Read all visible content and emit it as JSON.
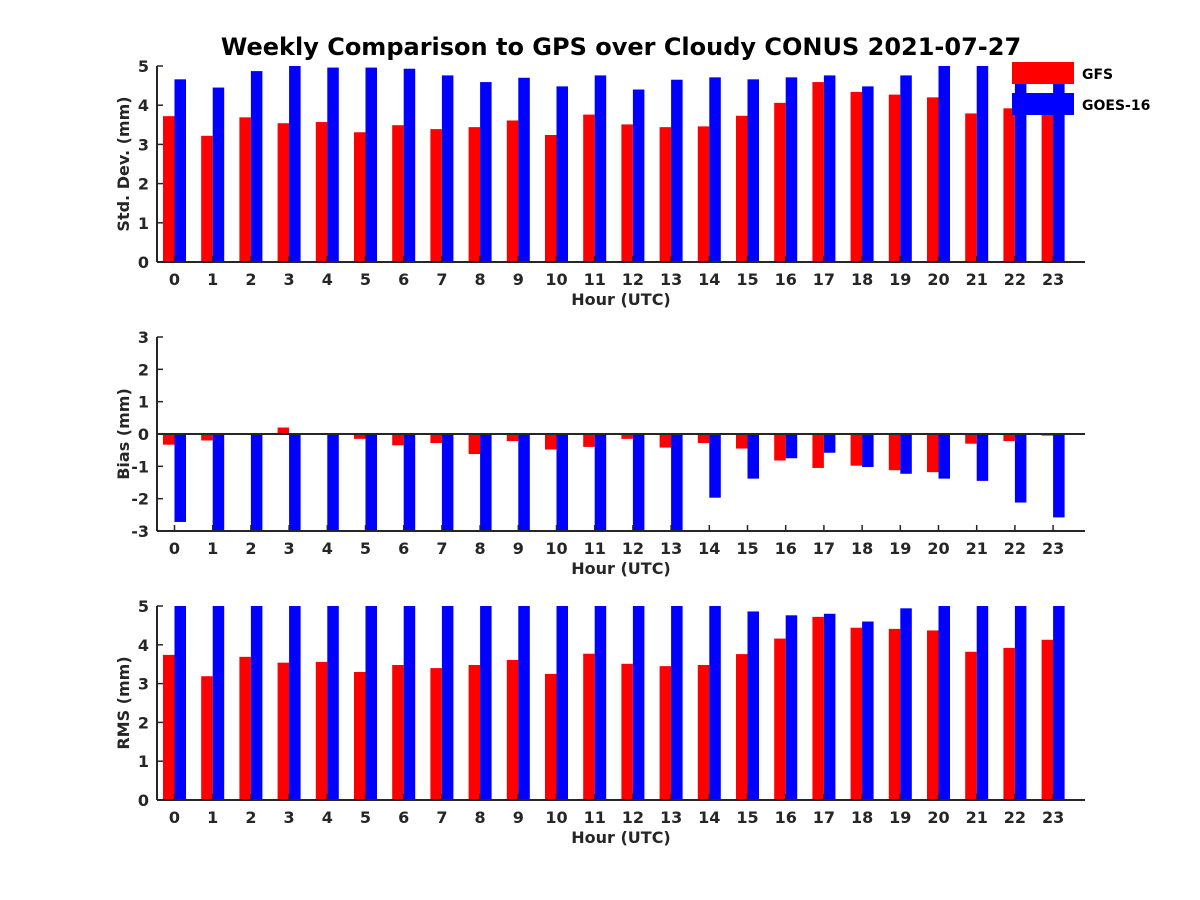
{
  "title": "Weekly Comparison to GPS over Cloudy CONUS 2021-07-27",
  "legend": {
    "placement": "top-right, outside axes",
    "entries": [
      {
        "name": "GFS",
        "color": "#ff0000"
      },
      {
        "name": "GOES-16",
        "color": "#0000ff"
      }
    ]
  },
  "chart_data": [
    {
      "type": "bar",
      "ylabel": "Std. Dev. (mm)",
      "xlabel": "Hour (UTC)",
      "ylim": [
        0,
        5
      ],
      "yticks": [
        0,
        1,
        2,
        3,
        4,
        5
      ],
      "grid": false,
      "categories": [
        "0",
        "1",
        "2",
        "3",
        "4",
        "5",
        "6",
        "7",
        "8",
        "9",
        "10",
        "11",
        "12",
        "13",
        "14",
        "15",
        "16",
        "17",
        "18",
        "19",
        "20",
        "21",
        "22",
        "23"
      ],
      "series": [
        {
          "name": "GFS",
          "color": "#ff0000",
          "values": [
            3.72,
            3.22,
            3.69,
            3.54,
            3.57,
            3.31,
            3.49,
            3.39,
            3.44,
            3.61,
            3.24,
            3.76,
            3.51,
            3.44,
            3.46,
            3.73,
            4.06,
            4.59,
            4.34,
            4.27,
            4.2,
            3.79,
            3.92,
            4.1
          ]
        },
        {
          "name": "GOES-16",
          "color": "#0000ff",
          "values": [
            4.66,
            4.45,
            4.87,
            5.0,
            4.96,
            4.96,
            4.93,
            4.76,
            4.59,
            4.7,
            4.48,
            4.76,
            4.4,
            4.65,
            4.71,
            4.66,
            4.71,
            4.76,
            4.48,
            4.76,
            5.0,
            5.0,
            4.93,
            5.0
          ]
        }
      ]
    },
    {
      "type": "bar",
      "ylabel": "Bias (mm)",
      "xlabel": "Hour (UTC)",
      "ylim": [
        -3,
        3
      ],
      "yticks": [
        -3,
        -2,
        -1,
        0,
        1,
        2,
        3
      ],
      "grid": false,
      "zero_line": true,
      "categories": [
        "0",
        "1",
        "2",
        "3",
        "4",
        "5",
        "6",
        "7",
        "8",
        "9",
        "10",
        "11",
        "12",
        "13",
        "14",
        "15",
        "16",
        "17",
        "18",
        "19",
        "20",
        "21",
        "22",
        "23"
      ],
      "series": [
        {
          "name": "GFS",
          "color": "#ff0000",
          "values": [
            -0.33,
            -0.2,
            -0.02,
            0.2,
            -0.02,
            -0.15,
            -0.35,
            -0.28,
            -0.62,
            -0.22,
            -0.48,
            -0.4,
            -0.15,
            -0.42,
            -0.28,
            -0.45,
            -0.82,
            -1.05,
            -0.98,
            -1.12,
            -1.18,
            -0.3,
            -0.22,
            -0.05
          ]
        },
        {
          "name": "GOES-16",
          "color": "#0000ff",
          "values": [
            -2.72,
            -3.0,
            -3.0,
            -3.0,
            -3.0,
            -3.0,
            -3.0,
            -3.0,
            -3.0,
            -3.0,
            -3.0,
            -3.0,
            -3.0,
            -3.0,
            -1.97,
            -1.38,
            -0.75,
            -0.58,
            -1.02,
            -1.23,
            -1.38,
            -1.45,
            -2.12,
            -2.58
          ]
        }
      ]
    },
    {
      "type": "bar",
      "ylabel": "RMS (mm)",
      "xlabel": "Hour (UTC)",
      "ylim": [
        0,
        5
      ],
      "yticks": [
        0,
        1,
        2,
        3,
        4,
        5
      ],
      "grid": false,
      "categories": [
        "0",
        "1",
        "2",
        "3",
        "4",
        "5",
        "6",
        "7",
        "8",
        "9",
        "10",
        "11",
        "12",
        "13",
        "14",
        "15",
        "16",
        "17",
        "18",
        "19",
        "20",
        "21",
        "22",
        "23"
      ],
      "series": [
        {
          "name": "GFS",
          "color": "#ff0000",
          "values": [
            3.74,
            3.19,
            3.69,
            3.54,
            3.56,
            3.3,
            3.48,
            3.4,
            3.48,
            3.61,
            3.25,
            3.77,
            3.51,
            3.45,
            3.48,
            3.76,
            4.16,
            4.72,
            4.44,
            4.41,
            4.37,
            3.82,
            3.92,
            4.13
          ]
        },
        {
          "name": "GOES-16",
          "color": "#0000ff",
          "values": [
            5.0,
            5.0,
            5.0,
            5.0,
            5.0,
            5.0,
            5.0,
            5.0,
            5.0,
            5.0,
            5.0,
            5.0,
            5.0,
            5.0,
            5.0,
            4.86,
            4.76,
            4.8,
            4.6,
            4.94,
            5.0,
            5.0,
            5.0,
            5.0
          ]
        }
      ]
    }
  ]
}
